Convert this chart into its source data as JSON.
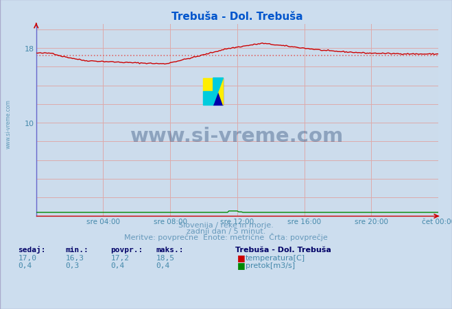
{
  "title": "Trebuša - Dol. Trebuša",
  "title_color": "#0055cc",
  "bg_color": "#ccddee",
  "plot_bg_color": "#ccdcec",
  "grid_color": "#ddaaaa",
  "left_spine_color": "#6666cc",
  "bottom_spine_color": "#cc0000",
  "temp_color": "#cc0000",
  "avg_line_color": "#dd6666",
  "flow_color": "#008800",
  "xlim": [
    0,
    288
  ],
  "ylim": [
    0,
    20.556
  ],
  "ytick_positions": [
    10,
    18
  ],
  "ytick_labels": [
    "10",
    "18"
  ],
  "xtick_labels": [
    "sre 04:00",
    "sre 08:00",
    "sre 12:00",
    "sre 16:00",
    "sre 20:00",
    "čet 00:00"
  ],
  "xtick_positions": [
    48,
    96,
    144,
    192,
    240,
    288
  ],
  "grid_yticks": [
    2,
    4,
    6,
    8,
    10,
    12,
    14,
    16,
    18,
    20
  ],
  "temp_avg": 17.2,
  "subtitle1": "Slovenija / reke in morje.",
  "subtitle2": "zadnji dan / 5 minut.",
  "subtitle3": "Meritve: povprečne  Enote: metrične  Črta: povprečje",
  "subtitle_color": "#6699bb",
  "stat_header_color": "#000066",
  "stat_value_color": "#4488aa",
  "legend_title": "Trebuša - Dol. Trebuša",
  "stat_headers": [
    "sedaj:",
    "min.:",
    "povpr.:",
    "maks.:"
  ],
  "temp_vals": [
    "17,0",
    "16,3",
    "17,2",
    "18,5"
  ],
  "flow_vals": [
    "0,4",
    "0,3",
    "0,4",
    "0,4"
  ],
  "left_label": "www.si-vreme.com",
  "watermark_text": "www.si-vreme.com",
  "watermark_color": "#1a3a6a",
  "watermark_alpha": 0.35,
  "logo_yellow": "#ffee00",
  "logo_cyan": "#00ccdd",
  "logo_blue": "#0000aa"
}
